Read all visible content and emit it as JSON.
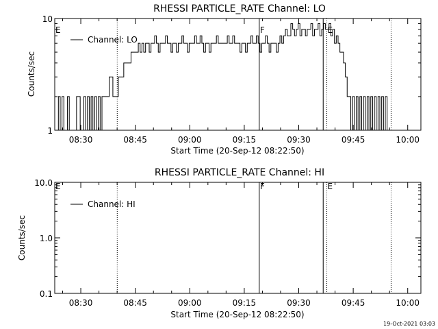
{
  "footer_date": "19-Oct-2021 03:03",
  "chart_data": [
    {
      "type": "line",
      "title": "RHESSI PARTICLE_RATE Channel: LO",
      "xlabel": "Start Time (20-Sep-12 08:22:50)",
      "ylabel": "Counts/sec",
      "yscale": "log",
      "ylim": [
        1,
        10
      ],
      "ytick_labels": [
        "1",
        "10"
      ],
      "ytick_values": [
        1,
        10
      ],
      "x_ticks": [
        "08:30",
        "08:45",
        "09:00",
        "09:15",
        "09:30",
        "09:45",
        "10:00"
      ],
      "x_tick_minutes": [
        7.17,
        22.17,
        37.17,
        52.17,
        67.17,
        82.17,
        97.17
      ],
      "xlim_minutes": [
        0,
        100.8
      ],
      "legend": {
        "label": "Channel: LO",
        "position": "top-left"
      },
      "markers": [
        {
          "label": "E",
          "minute": 0.0,
          "style": "none"
        },
        {
          "label": "",
          "minute": 17.2,
          "style": "dotted"
        },
        {
          "label": "F",
          "minute": 56.3,
          "style": "solid"
        },
        {
          "label": "",
          "minute": 73.9,
          "style": "solid"
        },
        {
          "label": "E",
          "minute": 74.9,
          "style": "dotted"
        },
        {
          "label": "",
          "minute": 92.6,
          "style": "dotted"
        }
      ],
      "series": [
        {
          "name": "Channel: LO",
          "x_minutes": [
            0,
            1,
            1.5,
            2,
            2.5,
            3,
            3.5,
            4,
            4.5,
            5,
            6,
            7,
            8,
            8.5,
            9,
            9.5,
            10,
            10.5,
            11,
            11.5,
            12,
            12.5,
            13,
            14,
            15,
            15.5,
            16,
            16.5,
            17,
            17.5,
            18,
            19,
            20,
            21,
            22,
            22.5,
            23,
            23.5,
            24,
            24.5,
            25,
            25.5,
            26,
            26.5,
            27,
            27.5,
            28,
            28.5,
            29,
            29.5,
            30,
            30.5,
            31,
            31.5,
            32,
            32.5,
            33,
            33.5,
            34,
            34.5,
            35,
            35.5,
            36,
            36.5,
            37,
            37.5,
            38,
            38.5,
            39,
            39.5,
            40,
            40.5,
            41,
            41.5,
            42,
            42.5,
            43,
            43.5,
            44,
            44.5,
            45,
            45.5,
            46,
            46.5,
            47,
            47.5,
            48,
            48.5,
            49,
            49.5,
            50,
            50.5,
            51,
            51.5,
            52,
            52.5,
            53,
            53.5,
            54,
            54.5,
            55,
            55.5,
            56,
            56.5,
            57,
            57.5,
            58,
            58.5,
            59,
            59.5,
            60,
            60.5,
            61,
            61.5,
            62,
            62.5,
            63,
            63.5,
            64,
            64.5,
            65,
            65.5,
            66,
            66.5,
            67,
            67.5,
            68,
            68.5,
            69,
            69.5,
            70,
            70.5,
            71,
            71.5,
            72,
            72.5,
            73,
            73.5,
            74,
            74.5,
            75,
            75.5,
            76,
            76.5,
            77,
            77.5,
            78,
            78.5,
            79,
            79.5,
            80,
            80.5,
            81,
            81.5,
            82,
            82.5,
            83,
            83.5,
            84,
            84.5,
            85,
            85.5,
            86,
            86.5,
            87,
            87.5,
            88,
            88.5,
            89,
            89.5,
            90,
            90.5,
            91,
            91.5,
            92,
            92.5
          ],
          "values": [
            1,
            2,
            1,
            2,
            1,
            1,
            2,
            1,
            1,
            1,
            2,
            1,
            2,
            1,
            2,
            1,
            2,
            1,
            2,
            1,
            2,
            1,
            2,
            2,
            3,
            3,
            2,
            2,
            2,
            3,
            3,
            4,
            4,
            5,
            5,
            5,
            6,
            5,
            6,
            5,
            6,
            6,
            5,
            6,
            6,
            7,
            6,
            5,
            6,
            6,
            6,
            7,
            6,
            6,
            5,
            6,
            6,
            5,
            6,
            6,
            7,
            6,
            6,
            5,
            6,
            6,
            6,
            7,
            6,
            6,
            7,
            6,
            5,
            6,
            6,
            5,
            6,
            6,
            6,
            7,
            6,
            6,
            6,
            6,
            6,
            7,
            6,
            6,
            7,
            6,
            6,
            6,
            5,
            6,
            6,
            5,
            6,
            6,
            7,
            6,
            6,
            7,
            6,
            5,
            6,
            6,
            7,
            6,
            5,
            6,
            6,
            6,
            5,
            6,
            7,
            6,
            7,
            8,
            7,
            7,
            9,
            8,
            7,
            8,
            9,
            7,
            8,
            8,
            7,
            8,
            8,
            9,
            7,
            8,
            8,
            9,
            7,
            8,
            9,
            8,
            8,
            9,
            7,
            8,
            6,
            7,
            6,
            5,
            5,
            4,
            3,
            2,
            2,
            1,
            2,
            1,
            2,
            1,
            2,
            1,
            2,
            1,
            2,
            1,
            2,
            1,
            2,
            1,
            2,
            1,
            2,
            1,
            2,
            1,
            1,
            1
          ]
        }
      ]
    },
    {
      "type": "line",
      "title": "RHESSI PARTICLE_RATE Channel: HI",
      "xlabel": "Start Time (20-Sep-12 08:22:50)",
      "ylabel": "Counts/sec",
      "yscale": "log",
      "ylim": [
        0.1,
        10
      ],
      "ytick_labels": [
        "0.1",
        "1.0",
        "10.0"
      ],
      "ytick_values": [
        0.1,
        1,
        10
      ],
      "x_ticks": [
        "08:30",
        "08:45",
        "09:00",
        "09:15",
        "09:30",
        "09:45",
        "10:00"
      ],
      "x_tick_minutes": [
        7.17,
        22.17,
        37.17,
        52.17,
        67.17,
        82.17,
        97.17
      ],
      "xlim_minutes": [
        0,
        100.8
      ],
      "legend": {
        "label": "Channel: HI",
        "position": "top-left"
      },
      "markers": [
        {
          "label": "E",
          "minute": 0.0,
          "style": "none"
        },
        {
          "label": "",
          "minute": 17.2,
          "style": "dotted"
        },
        {
          "label": "F",
          "minute": 56.3,
          "style": "solid"
        },
        {
          "label": "",
          "minute": 73.9,
          "style": "solid"
        },
        {
          "label": "E",
          "minute": 74.9,
          "style": "dotted"
        },
        {
          "label": "",
          "minute": 92.6,
          "style": "dotted"
        }
      ],
      "series": [
        {
          "name": "Channel: HI",
          "x_minutes": [],
          "values": []
        }
      ]
    }
  ]
}
